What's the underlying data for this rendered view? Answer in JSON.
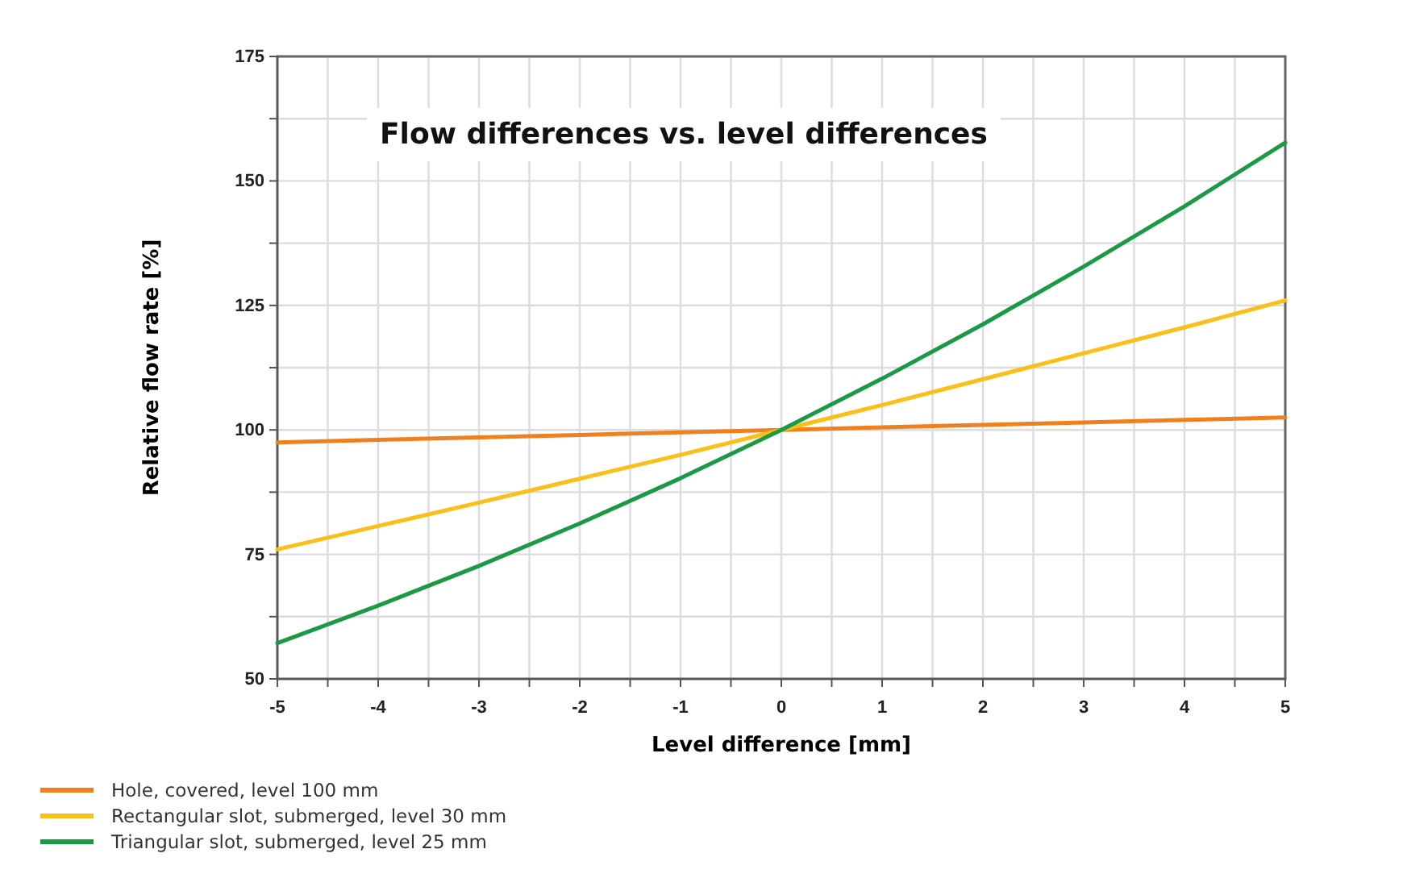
{
  "chart_data": {
    "type": "line",
    "title": "Flow differences vs. level differences",
    "xlabel": "Level difference [mm]",
    "ylabel": "Relative flow rate [%]",
    "x": [
      -5,
      -4,
      -3,
      -2,
      -1,
      0,
      1,
      2,
      3,
      4,
      5
    ],
    "series": [
      {
        "name": "Hole, covered, level 100 mm",
        "color": "#f07f1e",
        "values": [
          97.5,
          98,
          98.5,
          99,
          99.5,
          100,
          100.5,
          101,
          101.5,
          102,
          102.5
        ]
      },
      {
        "name": "Rectangular slot, submerged, level 30 mm",
        "color": "#fbbf1a",
        "values": [
          76,
          80.7,
          85.4,
          90.2,
          95,
          100,
          105,
          110.2,
          115.4,
          120.6,
          126
        ]
      },
      {
        "name": "Triangular slot, submerged, level 25 mm",
        "color": "#1a9a45",
        "values": [
          57.2,
          64.7,
          72.7,
          81.2,
          90.3,
          100,
          110.3,
          121.2,
          132.8,
          144.9,
          157.7
        ]
      }
    ],
    "xlim": [
      -5,
      5
    ],
    "ylim": [
      50,
      175
    ],
    "xticks": [
      -5,
      {
        "value": -4.5,
        "label": null
      },
      -4,
      {
        "value": -3.5,
        "label": null
      },
      -3,
      {
        "value": -2.5,
        "label": null
      },
      -2,
      {
        "value": -1.5,
        "label": null
      },
      -1,
      {
        "value": -0.5,
        "label": null
      },
      0,
      {
        "value": 0.5,
        "label": null
      },
      1,
      {
        "value": 1.5,
        "label": null
      },
      2,
      {
        "value": 2.5,
        "label": null
      },
      3,
      {
        "value": 3.5,
        "label": null
      },
      4,
      {
        "value": 4.5,
        "label": null
      },
      5
    ],
    "yticks": [
      50,
      {
        "value": 62.5,
        "label": null
      },
      75,
      {
        "value": 87.5,
        "label": null
      },
      100,
      {
        "value": 112.5,
        "label": null
      },
      125,
      {
        "value": 137.5,
        "label": null
      },
      150,
      {
        "value": 162.5,
        "label": null
      },
      175
    ],
    "grid": true,
    "legend": "bottom left",
    "marker": "none",
    "line_style": "solid"
  }
}
